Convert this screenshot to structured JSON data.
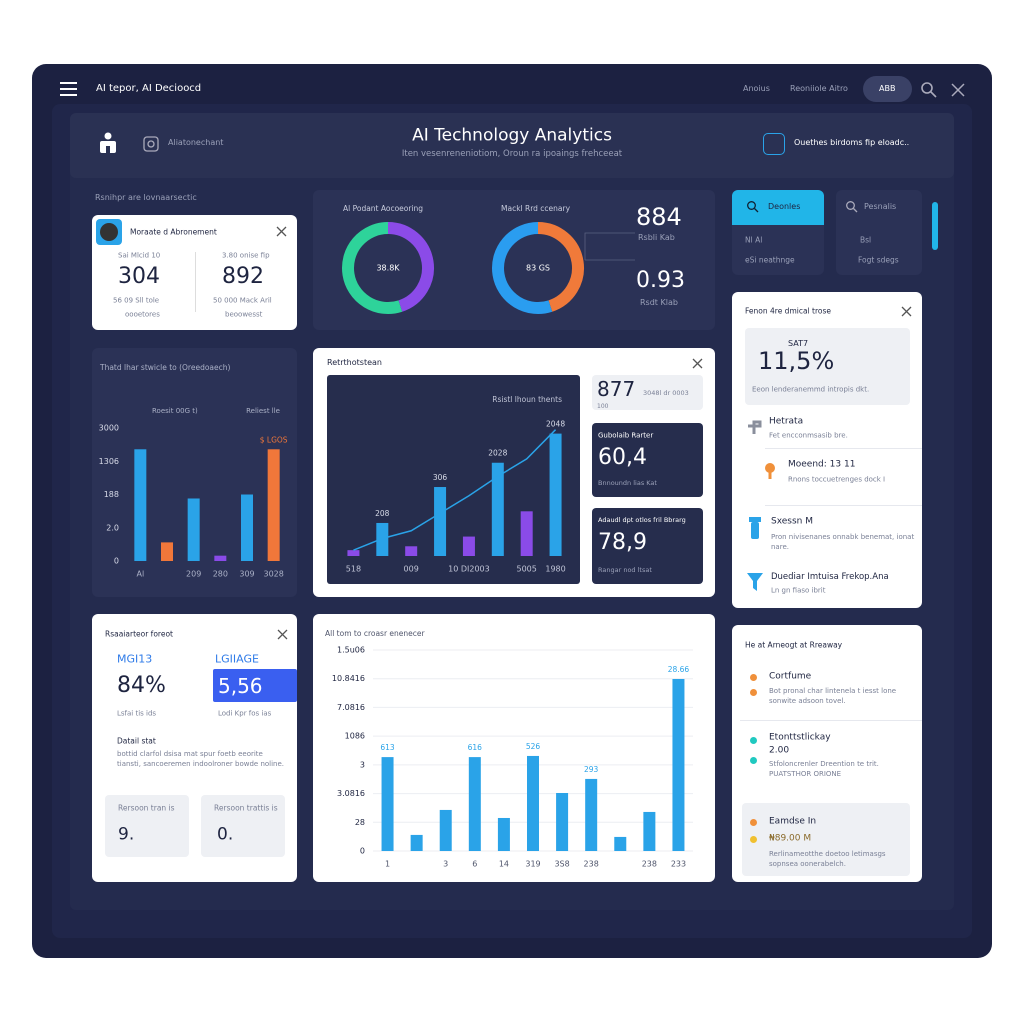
{
  "header": {
    "app_name": "AI tepor, AI Decioocd",
    "nav": [
      "Anoius",
      "Reoniiole Aitro",
      "ABB"
    ],
    "title": "AI Technology Analytics",
    "subtitle": "Iten vesenreneniotiom, Oroun ra ipoaings frehceeat",
    "left_label": "Aliatonechant",
    "right_label": "Ouethes birdoms fip eloadc.."
  },
  "section_label": "Rsnihpr are lovnaarsectic",
  "summary_card": {
    "title": "Moraate d Abronement",
    "stats": [
      {
        "label": "Sai Mlcid 10",
        "value": "304",
        "note": "56 09 Sll tole",
        "sub": "oooetores"
      },
      {
        "label": "3.80 onise fip",
        "value": "892",
        "note": "50 000 Mack Aril",
        "sub": "beoowesst"
      }
    ]
  },
  "donut_stats": [
    {
      "value": "884",
      "label": "Rsbli Kab"
    },
    {
      "value": "0.93",
      "label": "Rsdt Klab"
    }
  ],
  "tabs": [
    {
      "title": "Deonles",
      "line1": "Nl Al",
      "line2": "eSi neathnge"
    },
    {
      "title": "Pesnalis",
      "line1": "Bsl",
      "line2": "Fogt sdegs"
    }
  ],
  "combo_panel": {
    "title": "Retrthotstean",
    "stats": [
      {
        "value": "877",
        "label": "3048l dr 0003",
        "sub": "100"
      },
      {
        "title": "Gubolaib Rarter",
        "value": "60,4",
        "label": "Bnnoundn lias Kat"
      },
      {
        "title": "Adaudl dpt otlos fril Bbrarg",
        "value": "78,9",
        "label": "Rangar nod ltsat"
      }
    ]
  },
  "insights_panel": {
    "title": "Fenon 4re dmical trose",
    "badge": "SAT7",
    "value": "11,5%",
    "caption": "Eeon lenderanemmd intropis dkt.",
    "items": [
      {
        "title": "Hetrata",
        "text": "Fet encconmsasib bre."
      },
      {
        "title": "Moeend: 13 11",
        "text": "Rnons toccuetrenges dock I"
      },
      {
        "title": "Sxessn M",
        "text": "Pron nivisenanes onnabk benemat, ionat nare."
      },
      {
        "title": "Duediar Imtuisa Frekop.Ana",
        "text": "Ln gn fiaso ibrit"
      }
    ]
  },
  "kpi_panel": {
    "title": "Rsaaiarteor foreot",
    "kpis": [
      {
        "label": "MGI13",
        "value": "84%",
        "note": "Lsfai tis ids"
      },
      {
        "label": "LGIIAGE",
        "value": "5,56",
        "note": "Lodi Kpr fos ias"
      }
    ],
    "detail_title": "Datail stat",
    "detail_text": "bottid clarfol dsisa mat spur foetb eeorite tiansti, sancoeremen indoolroner bowde noline.",
    "boxes": [
      {
        "label": "Rersoon tran is",
        "value": "9."
      },
      {
        "label": "Rersoon trattis is",
        "value": "0."
      }
    ]
  },
  "activity_panel": {
    "title": "He at Arneogt at Rreaway",
    "items": [
      {
        "title": "Cortfume",
        "text": "Bot pronal char lintenela t iesst lone sonwite adsoon tovel."
      },
      {
        "title": "Etonttstlickay",
        "value": "2.00",
        "text": "Stfoloncrenler Dreention te trit. PUATSTHOR ORIONE"
      },
      {
        "title": "Eamdse In",
        "value": "₦89.00 M",
        "text": "Rerlinameotthe doetoo letimasgs sopnsea oonerabelch."
      }
    ]
  },
  "chart_data": [
    {
      "type": "donut",
      "title": "Al Podant Aocoeoring",
      "center_label": "38.8K",
      "values": [
        45,
        55
      ],
      "colors": [
        "#8b4be8",
        "#2ed39a"
      ]
    },
    {
      "type": "donut",
      "title": "Mackl Rrd ccenary",
      "center_label": "83 GS",
      "values": [
        45,
        55
      ],
      "colors": [
        "#f07a3a",
        "#2a9df0"
      ]
    },
    {
      "type": "bar",
      "title": "Thatd lhar stwicle to (Oreedoaech)",
      "subtitles": [
        "Roesit 00G t)",
        "Reliest lle"
      ],
      "categories": [
        "Al",
        null,
        "209",
        "280",
        "309",
        "3028"
      ],
      "values": [
        84,
        14,
        47,
        4,
        50,
        84
      ],
      "colors": [
        "#2aa3e8",
        "#f0773a",
        "#2aa3e8",
        "#8a4be8",
        "#2aa3e8",
        "#f0773a"
      ],
      "annotations": [
        null,
        null,
        null,
        null,
        null,
        "$ LGOS"
      ],
      "ylim": [
        0,
        100
      ],
      "yticks": [
        0,
        {
          "value": 25,
          "label": "2.0"
        },
        {
          "value": 50,
          "label": "188"
        },
        {
          "value": 75,
          "label": "1306"
        },
        {
          "value": 100,
          "label": "3000"
        }
      ],
      "grid": false
    },
    {
      "type": "combo",
      "title": "Rsistl lhoun thents",
      "categories": [
        "518",
        null,
        "009",
        null,
        "10 DI2003",
        null,
        "5005",
        "1980"
      ],
      "annotations": [
        null,
        "208",
        null,
        "306",
        null,
        "2028",
        null,
        "2048"
      ],
      "series": [
        {
          "type": "bar",
          "colors": [
            "#8a4be8",
            "#2aa3e8",
            "#8a4be8",
            "#2aa3e8",
            "#8a4be8",
            "#2aa3e8",
            "#8a4be8",
            "#2aa3e8"
          ],
          "values": [
            6,
            34,
            10,
            71,
            20,
            96,
            46,
            126
          ]
        },
        {
          "type": "line",
          "color": "#2aa3e8",
          "values": [
            6,
            18,
            26,
            44,
            62,
            82,
            100,
            130
          ]
        }
      ],
      "ylim": [
        0,
        140
      ]
    },
    {
      "type": "bar",
      "title": "All tom to croasr enenecer",
      "categories": [
        "1",
        null,
        "3",
        "6",
        "14",
        "319",
        "3S8",
        "238",
        null,
        "238",
        "233"
      ],
      "values": [
        3.27,
        0.56,
        1.43,
        3.27,
        1.15,
        3.31,
        2.02,
        2.51,
        0.49,
        1.36,
        5.99
      ],
      "color": "#2aa3e8",
      "annotations": [
        "613",
        null,
        null,
        "616",
        null,
        "526",
        null,
        "293",
        null,
        null,
        "28.66"
      ],
      "ylim": [
        0,
        7
      ],
      "yticks": [
        0,
        {
          "value": 1,
          "label": "28"
        },
        {
          "value": 2,
          "label": "3.0816"
        },
        3,
        {
          "value": 4,
          "label": "1086"
        },
        {
          "value": 5,
          "label": "7.0816"
        },
        {
          "value": 6,
          "label": "10.8416"
        },
        {
          "value": 7,
          "label": "1.5u06"
        }
      ],
      "grid": true
    }
  ]
}
